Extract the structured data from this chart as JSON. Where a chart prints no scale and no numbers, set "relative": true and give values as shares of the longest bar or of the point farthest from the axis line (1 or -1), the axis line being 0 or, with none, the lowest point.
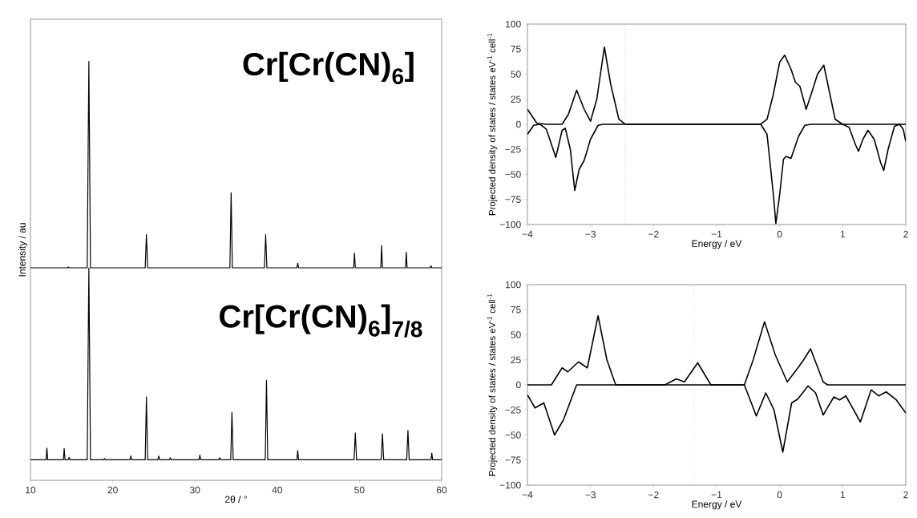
{
  "chart_data": [
    {
      "type": "line",
      "relative": true,
      "xlabel": "2θ / °",
      "ylabel": "Intensity / au",
      "xlim": [
        10,
        60
      ],
      "xticks": [
        10,
        20,
        30,
        40,
        50,
        60
      ],
      "annotations": [
        "Cr[Cr(CN)$_{6}$]",
        "Cr[Cr(CN)$_{6}$]$_{7/8}$"
      ],
      "series": [
        {
          "color": "#000000",
          "x": [
            10,
            14.5,
            14.6,
            14.7,
            16.9,
            17.1,
            17.3,
            23.95,
            24.1,
            24.25,
            34.25,
            34.4,
            34.55,
            38.45,
            38.6,
            38.75,
            42.4,
            42.5,
            42.6,
            49.3,
            49.4,
            49.5,
            52.6,
            52.7,
            52.8,
            55.6,
            55.7,
            55.8,
            58.6,
            58.7,
            58.8,
            60
          ],
          "values": [
            0.507,
            0.507,
            0.509,
            0.507,
            0.507,
            1.0,
            0.507,
            0.507,
            0.586,
            0.507,
            0.507,
            0.686,
            0.507,
            0.507,
            0.586,
            0.507,
            0.507,
            0.518,
            0.507,
            0.507,
            0.542,
            0.507,
            0.507,
            0.56,
            0.507,
            0.507,
            0.544,
            0.507,
            0.507,
            0.512,
            0.507,
            0.507
          ]
        },
        {
          "color": "#000000",
          "x": [
            10,
            11.9,
            12.0,
            12.1,
            14.0,
            14.1,
            14.2,
            14.6,
            14.7,
            14.8,
            16.9,
            17.1,
            17.3,
            18.9,
            19.0,
            19.1,
            22.1,
            22.2,
            22.3,
            23.95,
            24.1,
            24.25,
            25.5,
            25.6,
            25.7,
            26.9,
            27.0,
            27.1,
            30.5,
            30.6,
            30.7,
            32.9,
            33.0,
            33.1,
            34.35,
            34.5,
            34.65,
            38.55,
            38.7,
            38.85,
            42.4,
            42.5,
            42.6,
            49.35,
            49.5,
            49.65,
            52.65,
            52.8,
            52.95,
            55.75,
            55.9,
            56.05,
            58.7,
            58.8,
            58.9,
            60
          ],
          "values": [
            0.049,
            0.049,
            0.077,
            0.049,
            0.049,
            0.076,
            0.049,
            0.049,
            0.055,
            0.049,
            0.049,
            0.507,
            0.049,
            0.049,
            0.052,
            0.049,
            0.049,
            0.058,
            0.049,
            0.049,
            0.199,
            0.049,
            0.049,
            0.058,
            0.049,
            0.049,
            0.054,
            0.049,
            0.049,
            0.06,
            0.049,
            0.049,
            0.054,
            0.049,
            0.049,
            0.162,
            0.049,
            0.049,
            0.239,
            0.049,
            0.049,
            0.071,
            0.049,
            0.049,
            0.113,
            0.049,
            0.049,
            0.111,
            0.049,
            0.049,
            0.119,
            0.049,
            0.049,
            0.065,
            0.049,
            0.049
          ]
        }
      ]
    },
    {
      "type": "line",
      "xlabel": "Energy / eV",
      "ylabel": "Projected density of states / states eV$^{-1}$ cell$^{-1}$",
      "xlim": [
        -4,
        2
      ],
      "ylim": [
        -100,
        100
      ],
      "xticks": [
        {
          "value": -4,
          "label": "−4"
        },
        {
          "value": -3,
          "label": "−3"
        },
        {
          "value": -2,
          "label": "−2"
        },
        {
          "value": -1,
          "label": "−1"
        },
        0,
        1,
        2
      ],
      "yticks": [
        {
          "value": -100,
          "label": "−100"
        },
        {
          "value": -75,
          "label": "−75"
        },
        {
          "value": -50,
          "label": "−50"
        },
        {
          "value": -25,
          "label": "−25"
        },
        0,
        25,
        50,
        75,
        100
      ],
      "ref_lines": [
        {
          "axis": "x",
          "value": -2.45,
          "color": "#808080",
          "line_style": "dotted"
        }
      ],
      "series": [
        {
          "color": "#000000",
          "x": [
            -4,
            -3.85,
            -3.7,
            -3.45,
            -3.35,
            -3.22,
            -3.1,
            -3.0,
            -2.9,
            -2.78,
            -2.68,
            -2.55,
            -2.45,
            -0.3,
            -0.2,
            -0.1,
            0.0,
            0.08,
            0.18,
            0.25,
            0.32,
            0.42,
            0.5,
            0.6,
            0.7,
            0.78,
            0.88,
            1.0,
            2.0
          ],
          "values": [
            15,
            1,
            0,
            0,
            10,
            34,
            15,
            3,
            25,
            77,
            40,
            5,
            0,
            0,
            5,
            30,
            62,
            69,
            55,
            42,
            38,
            15,
            30,
            50,
            59,
            35,
            5,
            0,
            0
          ]
        },
        {
          "color": "#000000",
          "x": [
            -4,
            -3.9,
            -3.8,
            -3.7,
            -3.55,
            -3.45,
            -3.4,
            -3.32,
            -3.25,
            -3.18,
            -3.1,
            -3.0,
            -2.88,
            -2.8,
            -0.3,
            -0.2,
            -0.1,
            -0.06,
            0.0,
            0.06,
            0.1,
            0.18,
            0.3,
            0.4,
            0.5,
            1.0,
            1.1,
            1.2,
            1.25,
            1.32,
            1.4,
            1.5,
            1.6,
            1.65,
            1.72,
            1.82,
            1.9,
            1.96,
            2.0
          ],
          "values": [
            -10,
            -1,
            0,
            -5,
            -33,
            -6,
            -4,
            -25,
            -66,
            -45,
            -36,
            -15,
            -1,
            0,
            0,
            -10,
            -70,
            -99,
            -70,
            -35,
            -32,
            -34,
            -12,
            -1,
            0,
            0,
            -3,
            -20,
            -27,
            -15,
            -6,
            -15,
            -38,
            -46,
            -25,
            -2,
            0,
            -5,
            -17
          ]
        }
      ]
    },
    {
      "type": "line",
      "xlabel": "Energy / eV",
      "ylabel": "Projected density of states / states eV$^{-1}$ cell$^{-1}$",
      "xlim": [
        -4,
        2
      ],
      "ylim": [
        -100,
        100
      ],
      "xticks": [
        {
          "value": -4,
          "label": "−4"
        },
        {
          "value": -3,
          "label": "−3"
        },
        {
          "value": -2,
          "label": "−2"
        },
        {
          "value": -1,
          "label": "−1"
        },
        0,
        1,
        2
      ],
      "yticks": [
        {
          "value": -100,
          "label": "−100"
        },
        {
          "value": -75,
          "label": "−75"
        },
        {
          "value": -50,
          "label": "−50"
        },
        {
          "value": -25,
          "label": "−25"
        },
        0,
        25,
        50,
        75,
        100
      ],
      "ref_lines": [
        {
          "axis": "x",
          "value": -1.36,
          "color": "#808080",
          "line_style": "dotted"
        }
      ],
      "series": [
        {
          "color": "#000000",
          "x": [
            -4,
            -3.62,
            -3.45,
            -3.36,
            -3.19,
            -3.05,
            -2.88,
            -2.74,
            -2.6,
            -1.82,
            -1.64,
            -1.51,
            -1.3,
            -1.09,
            -0.56,
            -0.42,
            -0.24,
            -0.07,
            0.12,
            0.29,
            0.38,
            0.49,
            0.69,
            0.76,
            2
          ],
          "values": [
            0,
            0,
            17,
            13,
            23,
            17,
            69,
            25,
            0,
            0,
            6,
            3,
            22,
            0,
            0,
            25,
            63,
            30,
            3,
            17,
            25,
            36,
            3,
            0,
            0
          ]
        },
        {
          "color": "#000000",
          "x": [
            -4,
            -3.88,
            -3.74,
            -3.57,
            -3.43,
            -3.22,
            -0.56,
            -0.37,
            -0.22,
            -0.09,
            0.05,
            0.19,
            0.29,
            0.45,
            0.57,
            0.69,
            0.86,
            0.95,
            1.05,
            1.28,
            1.45,
            1.57,
            1.69,
            1.85,
            2
          ],
          "values": [
            -10,
            -23,
            -18,
            -50,
            -35,
            0,
            0,
            -31,
            -8,
            -25,
            -67,
            -18,
            -14,
            -1,
            -8,
            -30,
            -12,
            -15,
            -11,
            -37,
            -5,
            -11,
            -7,
            -15,
            -28
          ]
        }
      ]
    }
  ]
}
